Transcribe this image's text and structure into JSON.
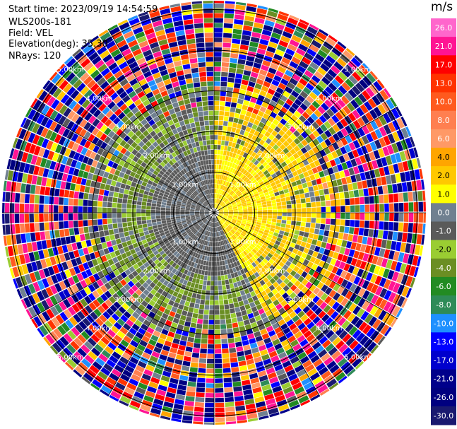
{
  "header": {
    "start_time": "Start time: 2023/09/19 14:54:59",
    "instrument": "WLS200s-181",
    "field": "Field: VEL",
    "elevation": "Elevation(deg): 35.30",
    "nrays": "NRays: 120"
  },
  "colorbar": {
    "unit": "m/s",
    "ticks": [
      "26.0",
      "21.0",
      "17.0",
      "13.0",
      "10.0",
      "8.0",
      "6.0",
      "4.0",
      "2.0",
      "1.0",
      "0.0",
      "-1.0",
      "-2.0",
      "-4.0",
      "-6.0",
      "-8.0",
      "-10.0",
      "-13.0",
      "-17.0",
      "-21.0",
      "-26.0",
      "-30.0"
    ],
    "colors": [
      "#ff66cc",
      "#ff1493",
      "#ff0000",
      "#ff3300",
      "#ff5a1e",
      "#ff7f50",
      "#ff9966",
      "#ffa500",
      "#ffc800",
      "#ffff00",
      "#708090",
      "#5a5a5a",
      "#9acd32",
      "#6b8e23",
      "#228b22",
      "#2e8b57",
      "#1e90ff",
      "#0000ff",
      "#0000cd",
      "#00008b",
      "#000080",
      "#191970"
    ]
  },
  "chart_data": {
    "type": "heatmap",
    "projection": "polar PPI (azimuth vs range)",
    "field": "VEL",
    "units": "m/s",
    "nrays": 120,
    "elevation_deg": 35.3,
    "range_ring_labels": [
      "1.00km",
      "2.00km",
      "3.00km",
      "4.00km",
      "5.00km"
    ],
    "range_rings_km": [
      1,
      2,
      3,
      4,
      5
    ],
    "radial_lines": 12,
    "color_scale_min": -30.0,
    "color_scale_max": 26.0,
    "description_of_field": "near range (<1.5 km) mostly 0 to 2 m/s, gray west/south, yellow north-east; 1.5-3 km mixed yellow/green/gray; beyond 3.5 km noisy multi-color returns"
  }
}
